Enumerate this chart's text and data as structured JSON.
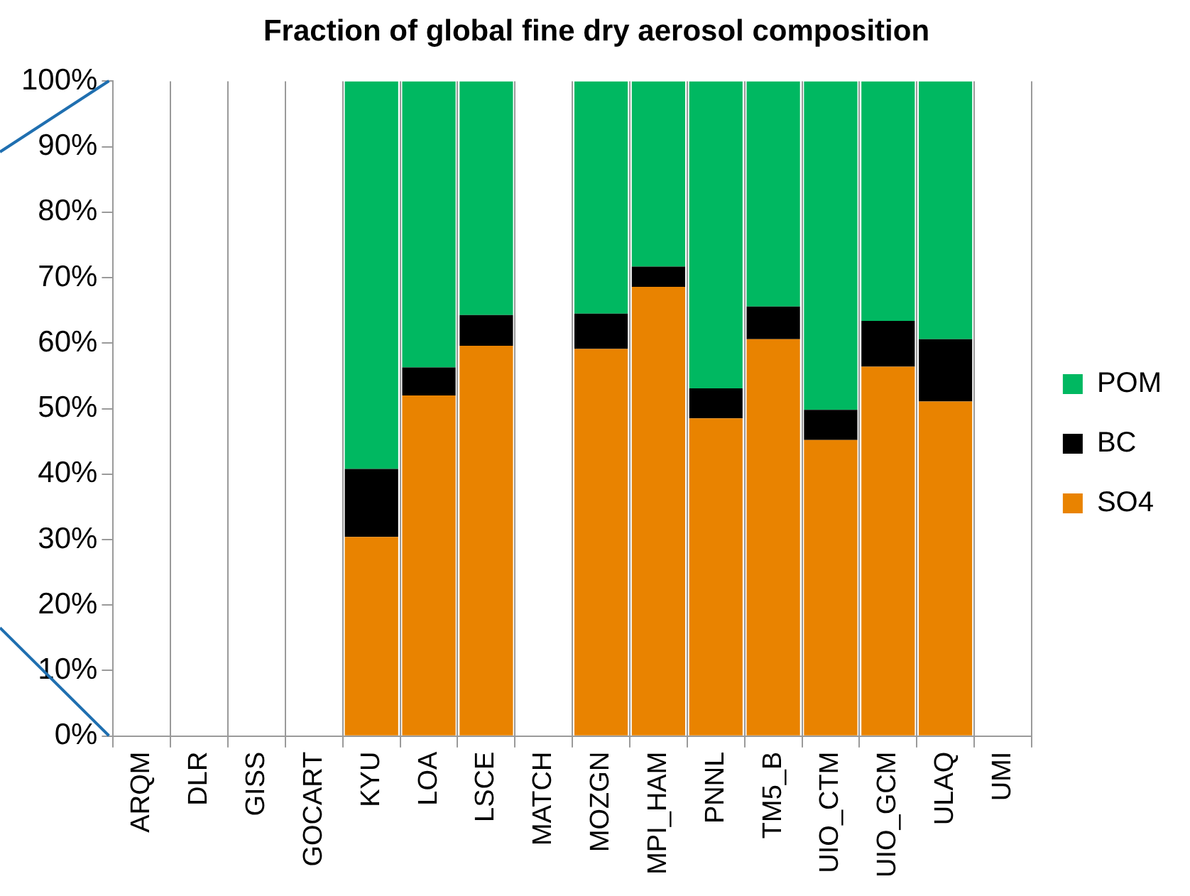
{
  "chart_data": {
    "type": "bar",
    "title": "Fraction of global fine dry aerosol composition",
    "stacked": true,
    "categories": [
      "ARQM",
      "DLR",
      "GISS",
      "GOCART",
      "KYU",
      "LOA",
      "LSCE",
      "MATCH",
      "MOZGN",
      "MPI_HAM",
      "PNNL",
      "TM5_B",
      "UIO_CTM",
      "UIO_GCM",
      "ULAQ",
      "UMI"
    ],
    "series": [
      {
        "name": "SO4",
        "color": "#e98300",
        "values": [
          null,
          null,
          null,
          null,
          30.4,
          52.0,
          59.6,
          null,
          59.1,
          68.6,
          48.5,
          60.6,
          45.2,
          56.4,
          51.1,
          null
        ]
      },
      {
        "name": "BC",
        "color": "#000000",
        "values": [
          null,
          null,
          null,
          null,
          10.4,
          4.3,
          4.7,
          null,
          5.4,
          3.1,
          4.6,
          5.0,
          4.6,
          7.0,
          9.5,
          null
        ]
      },
      {
        "name": "POM",
        "color": "#00b861",
        "values": [
          null,
          null,
          null,
          null,
          59.2,
          43.7,
          35.7,
          null,
          35.5,
          28.3,
          46.9,
          34.4,
          50.2,
          36.6,
          39.4,
          null
        ]
      }
    ],
    "ylim": [
      0,
      100
    ],
    "yticks": [
      {
        "value": 0,
        "label": "0%"
      },
      {
        "value": 10,
        "label": "10%"
      },
      {
        "value": 20,
        "label": "20%"
      },
      {
        "value": 30,
        "label": "30%"
      },
      {
        "value": 40,
        "label": "40%"
      },
      {
        "value": 50,
        "label": "50%"
      },
      {
        "value": 60,
        "label": "60%"
      },
      {
        "value": 70,
        "label": "70%"
      },
      {
        "value": 80,
        "label": "80%"
      },
      {
        "value": 90,
        "label": "90%"
      },
      {
        "value": 100,
        "label": "100%"
      }
    ],
    "grid": "x",
    "legend": "right"
  }
}
